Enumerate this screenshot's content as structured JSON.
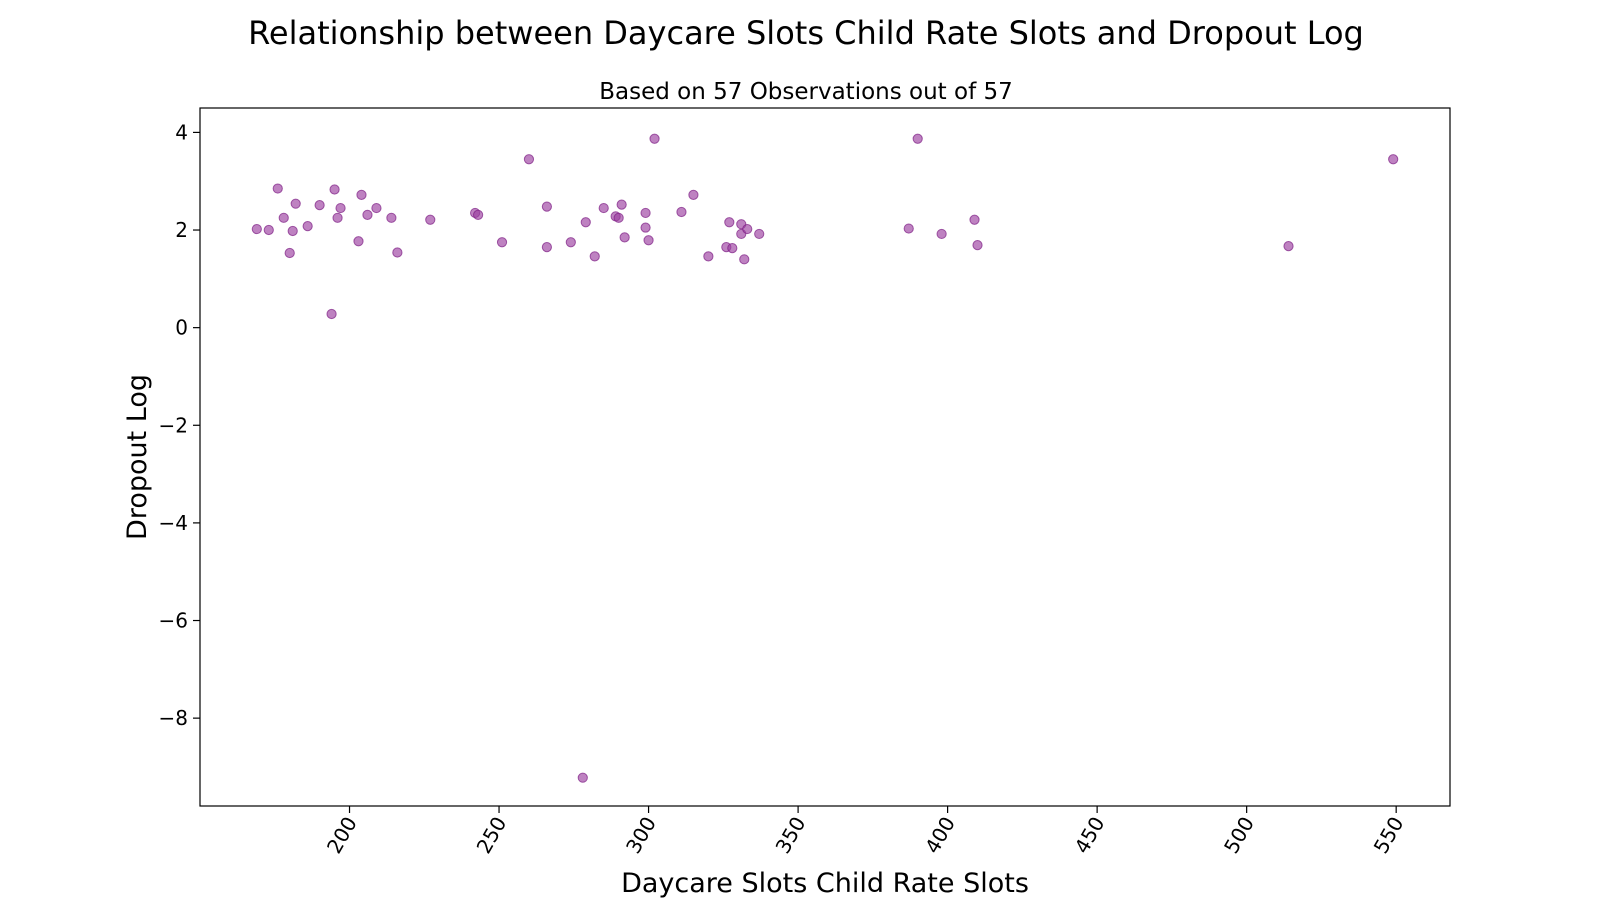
{
  "chart_data": {
    "type": "scatter",
    "title": "Relationship between Daycare Slots Child Rate Slots and Dropout Log",
    "subtitle": "Based on 57 Observations out of 57",
    "xlabel": "Daycare Slots Child Rate Slots",
    "ylabel": "Dropout Log",
    "xlim": [
      150,
      568
    ],
    "ylim": [
      -9.8,
      4.5
    ],
    "xticks": [
      200,
      250,
      300,
      350,
      400,
      450,
      500,
      550
    ],
    "yticks": [
      4,
      2,
      0,
      -2,
      -4,
      -6,
      -8
    ],
    "xtick_labels": [
      "200",
      "250",
      "300",
      "350",
      "400",
      "450",
      "500",
      "550"
    ],
    "ytick_labels": [
      "4",
      "2",
      "0",
      "−2",
      "−4",
      "−6",
      "−8"
    ],
    "grid": false,
    "point_color": "#9b3f9f",
    "points": [
      {
        "x": 169,
        "y": 2.02
      },
      {
        "x": 173,
        "y": 2.0
      },
      {
        "x": 176,
        "y": 2.85
      },
      {
        "x": 178,
        "y": 2.25
      },
      {
        "x": 180,
        "y": 1.53
      },
      {
        "x": 181,
        "y": 1.98
      },
      {
        "x": 182,
        "y": 2.54
      },
      {
        "x": 186,
        "y": 2.08
      },
      {
        "x": 190,
        "y": 2.51
      },
      {
        "x": 194,
        "y": 0.28
      },
      {
        "x": 195,
        "y": 2.83
      },
      {
        "x": 196,
        "y": 2.25
      },
      {
        "x": 197,
        "y": 2.45
      },
      {
        "x": 203,
        "y": 1.77
      },
      {
        "x": 204,
        "y": 2.72
      },
      {
        "x": 206,
        "y": 2.31
      },
      {
        "x": 209,
        "y": 2.45
      },
      {
        "x": 214,
        "y": 2.25
      },
      {
        "x": 216,
        "y": 1.54
      },
      {
        "x": 227,
        "y": 2.21
      },
      {
        "x": 242,
        "y": 2.35
      },
      {
        "x": 243,
        "y": 2.31
      },
      {
        "x": 251,
        "y": 1.75
      },
      {
        "x": 260,
        "y": 3.45
      },
      {
        "x": 266,
        "y": 2.48
      },
      {
        "x": 266,
        "y": 1.65
      },
      {
        "x": 274,
        "y": 1.75
      },
      {
        "x": 278,
        "y": -9.22
      },
      {
        "x": 279,
        "y": 2.16
      },
      {
        "x": 282,
        "y": 1.46
      },
      {
        "x": 285,
        "y": 2.45
      },
      {
        "x": 289,
        "y": 2.28
      },
      {
        "x": 290,
        "y": 2.25
      },
      {
        "x": 291,
        "y": 2.52
      },
      {
        "x": 292,
        "y": 1.85
      },
      {
        "x": 299,
        "y": 2.05
      },
      {
        "x": 299,
        "y": 2.35
      },
      {
        "x": 300,
        "y": 1.79
      },
      {
        "x": 302,
        "y": 3.87
      },
      {
        "x": 311,
        "y": 2.37
      },
      {
        "x": 315,
        "y": 2.72
      },
      {
        "x": 320,
        "y": 1.46
      },
      {
        "x": 326,
        "y": 1.65
      },
      {
        "x": 327,
        "y": 2.16
      },
      {
        "x": 328,
        "y": 1.63
      },
      {
        "x": 331,
        "y": 2.12
      },
      {
        "x": 331,
        "y": 1.92
      },
      {
        "x": 332,
        "y": 1.4
      },
      {
        "x": 333,
        "y": 2.02
      },
      {
        "x": 337,
        "y": 1.92
      },
      {
        "x": 387,
        "y": 2.03
      },
      {
        "x": 390,
        "y": 3.87
      },
      {
        "x": 398,
        "y": 1.92
      },
      {
        "x": 409,
        "y": 2.21
      },
      {
        "x": 410,
        "y": 1.69
      },
      {
        "x": 514,
        "y": 1.67
      },
      {
        "x": 549,
        "y": 3.45
      }
    ]
  }
}
